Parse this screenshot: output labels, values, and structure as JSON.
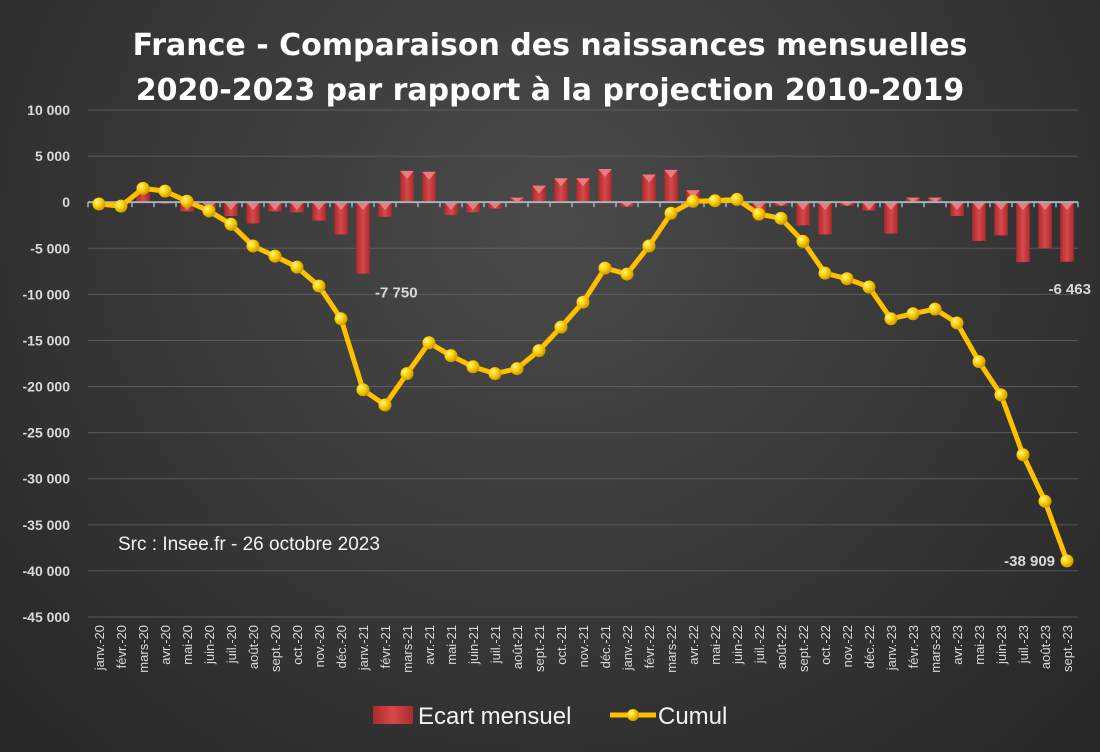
{
  "chart_data": {
    "type": "bar+line",
    "title": [
      "France - Comparaison des naissances mensuelles",
      "2020-2023 par rapport à la projection 2010-2019"
    ],
    "source": "Src : Insee.fr - 26 octobre 2023",
    "ylim": [
      -45000,
      10000
    ],
    "yticks": [
      10000,
      5000,
      0,
      -5000,
      -10000,
      -15000,
      -20000,
      -25000,
      -30000,
      -35000,
      -40000,
      -45000
    ],
    "ytick_labels": [
      "10 000",
      "5 000",
      "0",
      "-5 000",
      "-10 000",
      "-15 000",
      "-20 000",
      "-25 000",
      "-30 000",
      "-35 000",
      "-40 000",
      "-45 000"
    ],
    "grid": true,
    "legend_position": "bottom",
    "categories": [
      "janv.-20",
      "févr.-20",
      "mars-20",
      "avr.-20",
      "mai-20",
      "juin-20",
      "juil.-20",
      "août-20",
      "sept.-20",
      "oct.-20",
      "nov.-20",
      "déc.-20",
      "janv.-21",
      "févr.-21",
      "mars-21",
      "avr.-21",
      "mai-21",
      "juin-21",
      "juil.-21",
      "août-21",
      "sept.-21",
      "oct.-21",
      "nov.-21",
      "déc.-21",
      "janv.-22",
      "févr.-22",
      "mars-22",
      "avr.-22",
      "mai-22",
      "juin-22",
      "juil.-22",
      "août-22",
      "sept.-22",
      "oct.-22",
      "nov.-22",
      "déc.-22",
      "janv.-23",
      "févr.-23",
      "mars-23",
      "avr.-23",
      "mai-23",
      "juin-23",
      "juil.-23",
      "août-23",
      "sept.-23"
    ],
    "series": [
      {
        "name": "Ecart mensuel",
        "type": "bar",
        "color": "#c0393b",
        "values": [
          -200,
          -300,
          1700,
          -150,
          -1000,
          -900,
          -1500,
          -2300,
          -1000,
          -1100,
          -2000,
          -3500,
          -7750,
          -1600,
          3400,
          3300,
          -1400,
          -1100,
          -700,
          500,
          1800,
          2600,
          2600,
          3600,
          -500,
          3000,
          3500,
          1300,
          100,
          100,
          -1500,
          -400,
          -2500,
          -3500,
          -400,
          -900,
          -3400,
          500,
          500,
          -1500,
          -4200,
          -3600,
          -6500,
          -5000,
          -6463
        ]
      },
      {
        "name": "Cumul",
        "type": "line",
        "color": "#ffc000",
        "values": [
          -200,
          -430,
          1500,
          1200,
          100,
          -950,
          -2400,
          -4750,
          -5850,
          -7050,
          -9100,
          -12650,
          -20350,
          -22000,
          -18600,
          -15250,
          -16650,
          -17850,
          -18600,
          -18050,
          -16100,
          -13550,
          -10850,
          -7150,
          -7800,
          -4750,
          -1200,
          100,
          150,
          300,
          -1300,
          -1750,
          -4250,
          -7700,
          -8300,
          -9200,
          -12650,
          -12100,
          -11600,
          -13100,
          -17300,
          -20900,
          -27400,
          -32450,
          -38909
        ]
      }
    ],
    "annotations": [
      {
        "series": "Ecart mensuel",
        "category": "janv.-21",
        "text": "-7 750"
      },
      {
        "series": "Ecart mensuel",
        "category": "sept.-23",
        "text": "-6 463"
      },
      {
        "series": "Cumul",
        "category": "sept.-23",
        "text": "-38 909"
      }
    ]
  }
}
